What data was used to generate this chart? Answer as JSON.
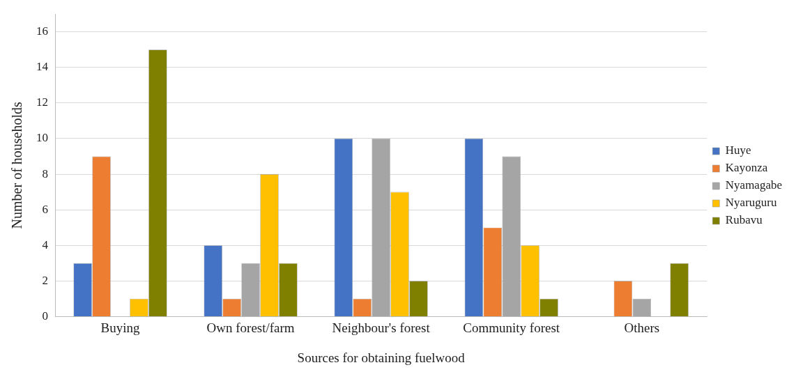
{
  "chart_data": {
    "type": "bar",
    "xlabel": "Sources for obtaining fuelwood",
    "ylabel": "Number of households",
    "categories": [
      "Buying",
      "Own forest/farm",
      "Neighbour's forest",
      "Community forest",
      "Others"
    ],
    "series": [
      {
        "name": "Huye",
        "color": "#4472c4",
        "values": [
          3,
          4,
          10,
          10,
          0
        ]
      },
      {
        "name": "Kayonza",
        "color": "#ed7d31",
        "values": [
          9,
          1,
          1,
          5,
          2
        ]
      },
      {
        "name": "Nyamagabe",
        "color": "#a5a5a5",
        "values": [
          0,
          3,
          10,
          9,
          1
        ]
      },
      {
        "name": "Nyaruguru",
        "color": "#ffc000",
        "values": [
          1,
          8,
          7,
          4,
          0
        ]
      },
      {
        "name": "Rubavu",
        "color": "#808000",
        "values": [
          15,
          3,
          2,
          1,
          3
        ]
      }
    ],
    "ylim": [
      0,
      17
    ],
    "yticks": [
      0,
      2,
      4,
      6,
      8,
      10,
      12,
      14,
      16
    ],
    "grid": "y",
    "legend": "right"
  }
}
